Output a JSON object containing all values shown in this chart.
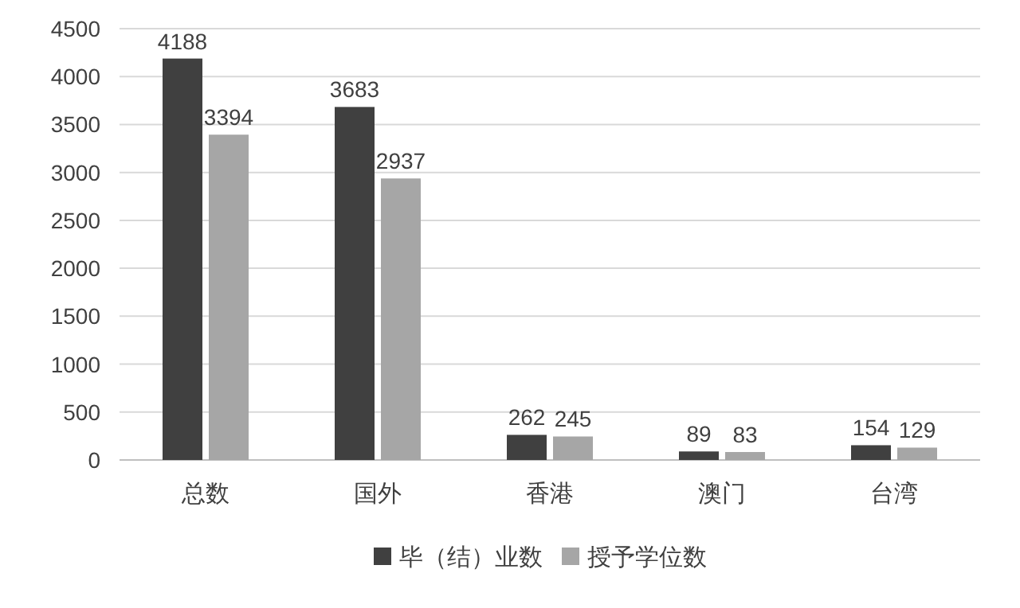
{
  "chart_data": {
    "type": "bar",
    "categories": [
      "总数",
      "国外",
      "香港",
      "澳门",
      "台湾"
    ],
    "series": [
      {
        "name": "毕（结）业数",
        "color": "#404040",
        "values": [
          4188,
          3683,
          262,
          89,
          154
        ]
      },
      {
        "name": "授予学位数",
        "color": "#a6a6a6",
        "values": [
          3394,
          2937,
          245,
          83,
          129
        ]
      }
    ],
    "ylim": [
      0,
      4500
    ],
    "yticks": [
      0,
      500,
      1000,
      1500,
      2000,
      2500,
      3000,
      3500,
      4000,
      4500
    ],
    "grid": "y",
    "legend": "bottom",
    "data_labels": true
  }
}
